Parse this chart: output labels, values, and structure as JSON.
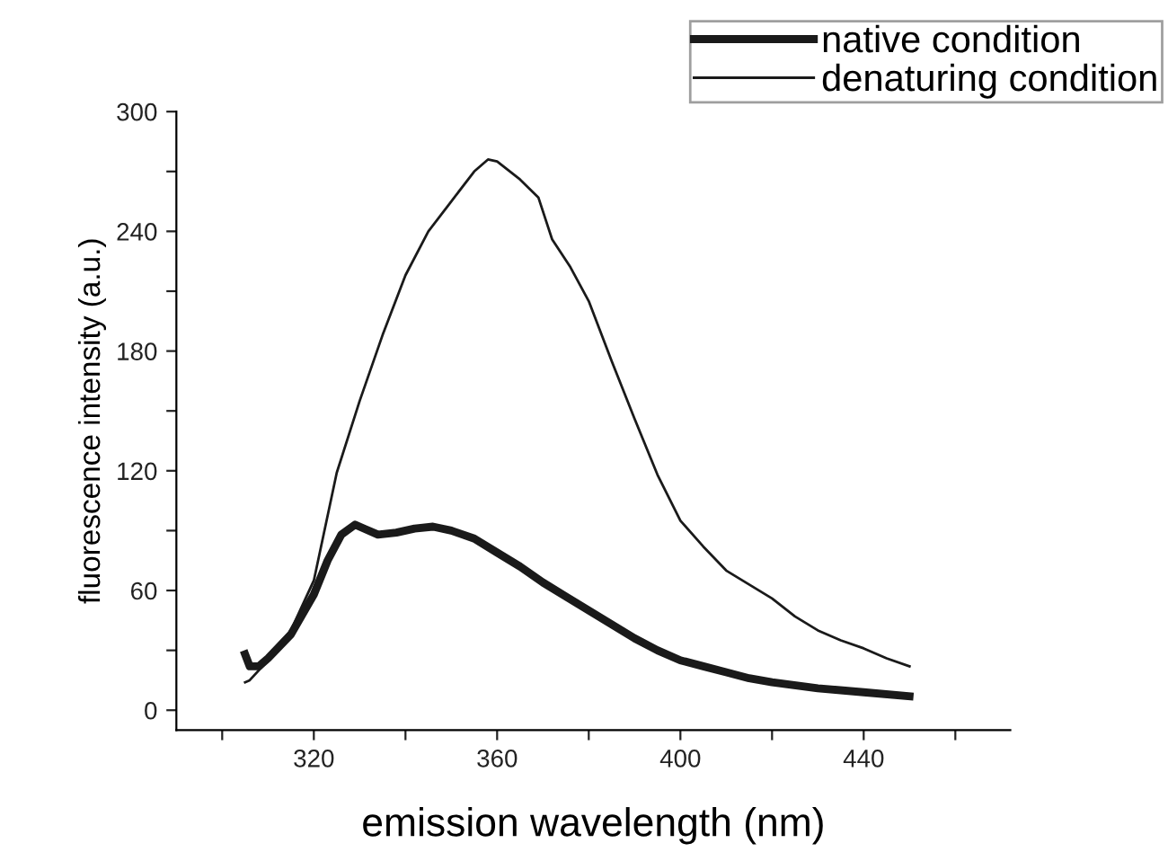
{
  "chart_data": {
    "type": "line",
    "xlabel": "emission wavelength (nm)",
    "ylabel": "fluorescence intensity (a.u.)",
    "xlim": [
      290,
      472
    ],
    "ylim": [
      -10,
      300
    ],
    "xticks": [
      {
        "value": 300,
        "label": null
      },
      320,
      {
        "value": 340,
        "label": null
      },
      360,
      {
        "value": 380,
        "label": null
      },
      400,
      {
        "value": 420,
        "label": null
      },
      440,
      {
        "value": 460,
        "label": null
      }
    ],
    "yticks": [
      0,
      {
        "value": 30,
        "label": null
      },
      60,
      {
        "value": 90,
        "label": null
      },
      120,
      {
        "value": 150,
        "label": null
      },
      180,
      {
        "value": 210,
        "label": null
      },
      240,
      {
        "value": 270,
        "label": null
      },
      300
    ],
    "grid": false,
    "legend": "top right",
    "marker": "none",
    "line_style": "solid",
    "series": [
      {
        "name": "native condition",
        "color": "#1a1a1a",
        "x": [
          305,
          306,
          308,
          310,
          315,
          320,
          323,
          326,
          329,
          331,
          334,
          338,
          342,
          346,
          350,
          355,
          360,
          365,
          370,
          375,
          380,
          385,
          390,
          395,
          400,
          405,
          410,
          415,
          420,
          430,
          440,
          450
        ],
        "values": [
          28,
          22,
          22,
          26,
          38,
          58,
          75,
          88,
          93,
          91,
          88,
          89,
          91,
          92,
          90,
          86,
          79,
          72,
          64,
          57,
          50,
          43,
          36,
          30,
          25,
          22,
          19,
          16,
          14,
          11,
          9,
          7
        ]
      },
      {
        "name": "denaturing condition",
        "color": "#1a1a1a",
        "x": [
          305,
          306,
          310,
          315,
          320,
          325,
          330,
          335,
          340,
          345,
          350,
          355,
          358,
          360,
          365,
          369,
          372,
          376,
          380,
          385,
          390,
          395,
          400,
          405,
          410,
          415,
          420,
          425,
          430,
          435,
          440,
          445,
          450
        ],
        "values": [
          14,
          15,
          25,
          40,
          65,
          119,
          155,
          188,
          218,
          240,
          255,
          270,
          276,
          275,
          266,
          257,
          236,
          222,
          205,
          175,
          146,
          118,
          95,
          82,
          70,
          63,
          56,
          47,
          40,
          35,
          31,
          26,
          22
        ]
      }
    ]
  }
}
